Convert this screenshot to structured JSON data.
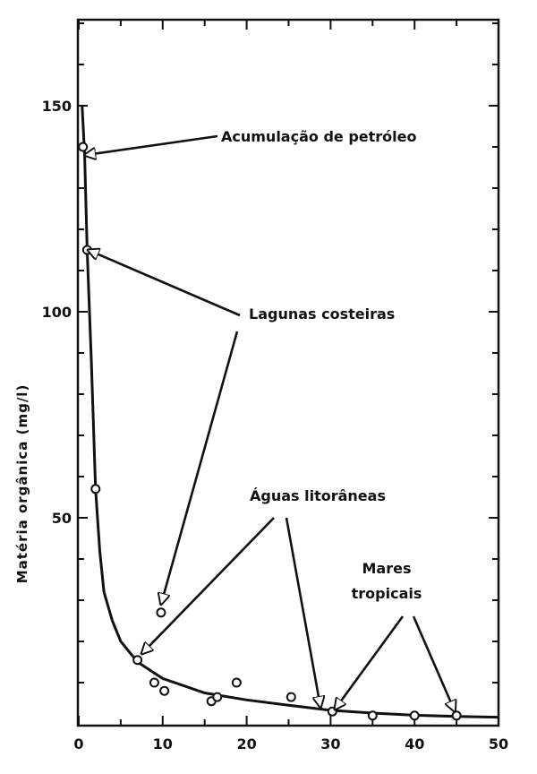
{
  "chart_data": {
    "type": "scatter",
    "title": "",
    "xlabel": "",
    "ylabel": "Matéria orgânica (mg/l)",
    "xlim": [
      0,
      50
    ],
    "ylim": [
      0,
      170
    ],
    "grid": false,
    "x_ticks": [
      "0",
      "10",
      "20",
      "30",
      "40",
      "50"
    ],
    "y_ticks": [
      "50",
      "100",
      "150"
    ],
    "series": [
      {
        "points": [
          {
            "x": 0.5,
            "y": 140
          },
          {
            "x": 1.0,
            "y": 115
          },
          {
            "x": 2.0,
            "y": 57
          },
          {
            "x": 7.0,
            "y": 15.5
          },
          {
            "x": 9.0,
            "y": 10
          },
          {
            "x": 9.8,
            "y": 27
          },
          {
            "x": 10.2,
            "y": 8
          },
          {
            "x": 15.8,
            "y": 5.5
          },
          {
            "x": 16.5,
            "y": 6.5
          },
          {
            "x": 18.8,
            "y": 10
          },
          {
            "x": 25.3,
            "y": 6.5
          },
          {
            "x": 30.2,
            "y": 3
          },
          {
            "x": 35.0,
            "y": 2
          },
          {
            "x": 40.0,
            "y": 2
          },
          {
            "x": 45.0,
            "y": 2
          }
        ]
      }
    ],
    "trend_curve": [
      {
        "x": 0.4,
        "y": 150
      },
      {
        "x": 0.7,
        "y": 138
      },
      {
        "x": 1.0,
        "y": 115
      },
      {
        "x": 1.5,
        "y": 88
      },
      {
        "x": 2.0,
        "y": 57
      },
      {
        "x": 2.5,
        "y": 42
      },
      {
        "x": 3.0,
        "y": 32
      },
      {
        "x": 4.0,
        "y": 25
      },
      {
        "x": 5.0,
        "y": 20
      },
      {
        "x": 7.0,
        "y": 15
      },
      {
        "x": 10.0,
        "y": 11
      },
      {
        "x": 15.0,
        "y": 7.5
      },
      {
        "x": 20.0,
        "y": 5.8
      },
      {
        "x": 25.0,
        "y": 4.5
      },
      {
        "x": 30.0,
        "y": 3.3
      },
      {
        "x": 35.0,
        "y": 2.6
      },
      {
        "x": 40.0,
        "y": 2.1
      },
      {
        "x": 45.0,
        "y": 1.8
      },
      {
        "x": 50.0,
        "y": 1.6
      }
    ],
    "annotations": [
      {
        "id": "petroleo",
        "lines": [
          "Acumulação de petróleo"
        ],
        "targets": [
          {
            "x": 0.7,
            "y": 138
          }
        ]
      },
      {
        "id": "lagunas",
        "lines": [
          "Lagunas costeiras"
        ],
        "targets": [
          {
            "x": 1.1,
            "y": 115
          },
          {
            "x": 9.8,
            "y": 29
          }
        ]
      },
      {
        "id": "aguas",
        "lines": [
          "Águas litorâneas"
        ],
        "targets": [
          {
            "x": 7.5,
            "y": 17
          },
          {
            "x": 28.8,
            "y": 4
          }
        ]
      },
      {
        "id": "mares",
        "lines": [
          "Mares",
          "tropicais"
        ],
        "targets": [
          {
            "x": 30.5,
            "y": 3.5
          },
          {
            "x": 44.8,
            "y": 3
          }
        ]
      }
    ]
  }
}
